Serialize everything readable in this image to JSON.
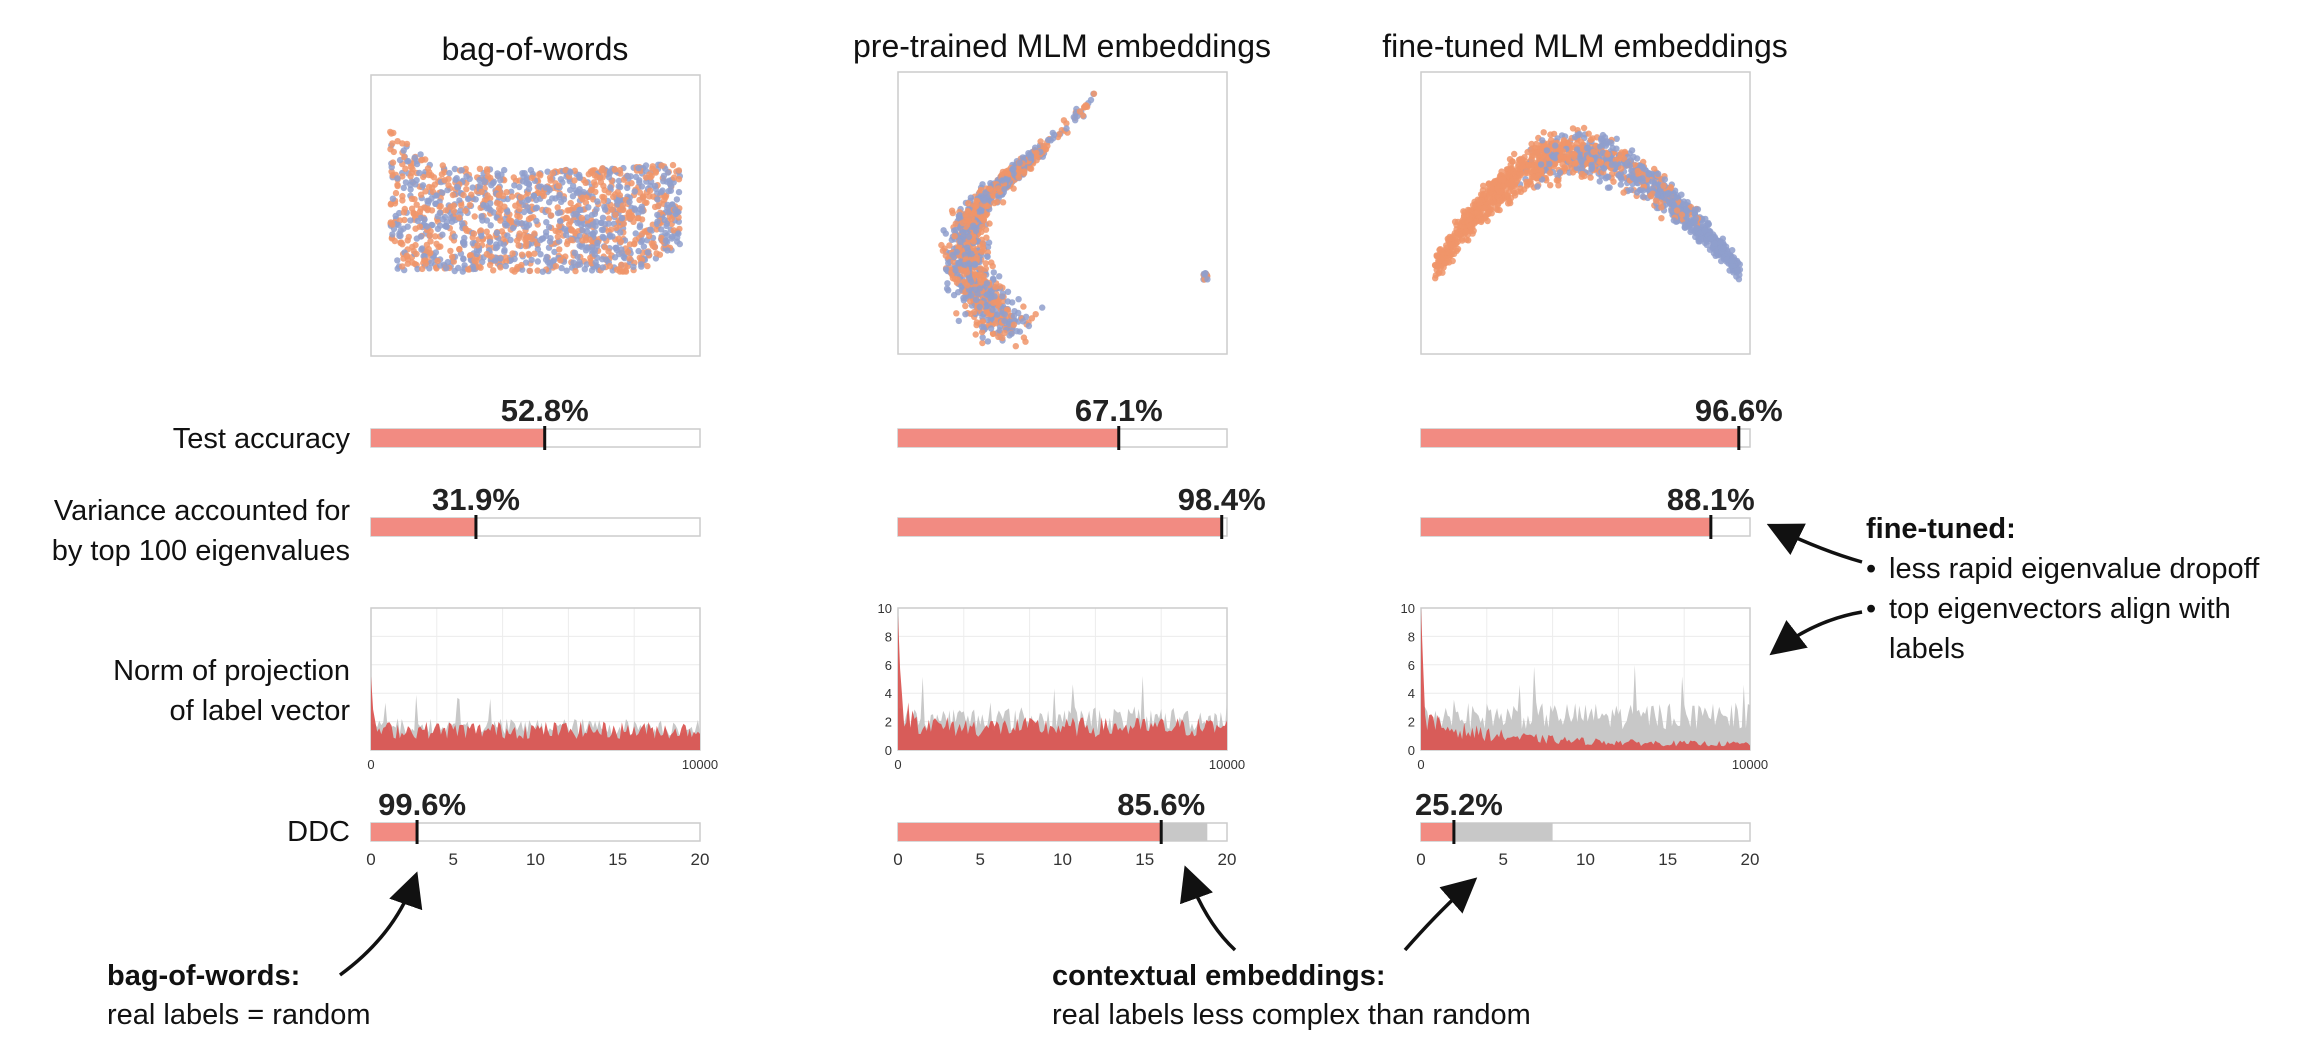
{
  "colors": {
    "orange": "#f0956a",
    "blue": "#8f9fcc",
    "bar_fill": "#f28b82",
    "projection_red": "#d9534f",
    "random_gray": "#c8c8c8",
    "frame": "#cccccc",
    "text": "#111111"
  },
  "row_labels": {
    "test_accuracy": "Test accuracy",
    "variance": [
      "Variance accounted for",
      "by top 100 eigenvalues"
    ],
    "norm": [
      "Norm of projection",
      "of label vector"
    ],
    "ddc": "DDC"
  },
  "chart_data": [
    {
      "type": "scatter",
      "title": "bag-of-words",
      "series": [
        {
          "color": "#f0956a"
        },
        {
          "color": "#8f9fcc"
        }
      ],
      "shape": "blob"
    },
    {
      "type": "scatter",
      "title": "pre-trained MLM embeddings",
      "series": [
        {
          "color": "#f0956a"
        },
        {
          "color": "#8f9fcc"
        }
      ],
      "shape": "crescent-with-outlier-cluster"
    },
    {
      "type": "scatter",
      "title": "fine-tuned MLM embeddings",
      "series": [
        {
          "color": "#f0956a"
        },
        {
          "color": "#8f9fcc"
        }
      ],
      "shape": "arch"
    },
    {
      "type": "bar",
      "title": "Test accuracy",
      "categories": [
        "bag-of-words",
        "pre-trained MLM embeddings",
        "fine-tuned MLM embeddings"
      ],
      "values": [
        52.8,
        67.1,
        96.6
      ],
      "labels": [
        "52.8%",
        "67.1%",
        "96.6%"
      ],
      "ylim": [
        0,
        100
      ]
    },
    {
      "type": "bar",
      "title": "Variance accounted for by top 100 eigenvalues",
      "categories": [
        "bag-of-words",
        "pre-trained MLM embeddings",
        "fine-tuned MLM embeddings"
      ],
      "values": [
        31.9,
        98.4,
        88.1
      ],
      "labels": [
        "31.9%",
        "98.4%",
        "88.1%"
      ],
      "ylim": [
        0,
        100
      ]
    },
    {
      "type": "area",
      "title": "Norm of projection of label vector",
      "xlim": [
        0,
        10000
      ],
      "xticks": [
        "0",
        "10000"
      ],
      "panels": [
        {
          "yticks": [],
          "ylim": [
            0,
            10
          ],
          "real_level": 1.4,
          "random_level": 1.6,
          "peak": 5.2
        },
        {
          "yticks": [
            "0",
            "2",
            "4",
            "6",
            "8",
            "10"
          ],
          "ylim": [
            0,
            10
          ],
          "real_level": 1.6,
          "random_level": 2.2,
          "peak": 9.5
        },
        {
          "yticks": [
            "0",
            "2",
            "4",
            "6",
            "8",
            "10"
          ],
          "ylim": [
            0,
            10
          ],
          "real_level": 0.4,
          "random_level": 2.4,
          "peak": 10.0
        }
      ],
      "series": [
        {
          "name": "real labels",
          "color": "#d9534f"
        },
        {
          "name": "random labels",
          "color": "#c8c8c8"
        }
      ]
    },
    {
      "type": "bar",
      "title": "DDC",
      "categories": [
        "bag-of-words",
        "pre-trained MLM embeddings",
        "fine-tuned MLM embeddings"
      ],
      "real_values": [
        2.8,
        16.0,
        2.0
      ],
      "random_values": [
        2.8,
        18.8,
        8.0
      ],
      "labels": [
        "99.6%",
        "85.6%",
        "25.2%"
      ],
      "xlim": [
        0,
        20
      ],
      "xticks": [
        "0",
        "5",
        "10",
        "15",
        "20"
      ]
    }
  ],
  "annotations": {
    "bow": {
      "title": "bag-of-words:",
      "text": "real labels = random"
    },
    "ctx": {
      "title": "contextual embeddings:",
      "text": "real labels less complex than random"
    },
    "ft": {
      "title": "fine-tuned:",
      "bullets": [
        "less rapid eigenvalue dropoff",
        "top eigenvectors align with",
        "labels"
      ]
    }
  }
}
